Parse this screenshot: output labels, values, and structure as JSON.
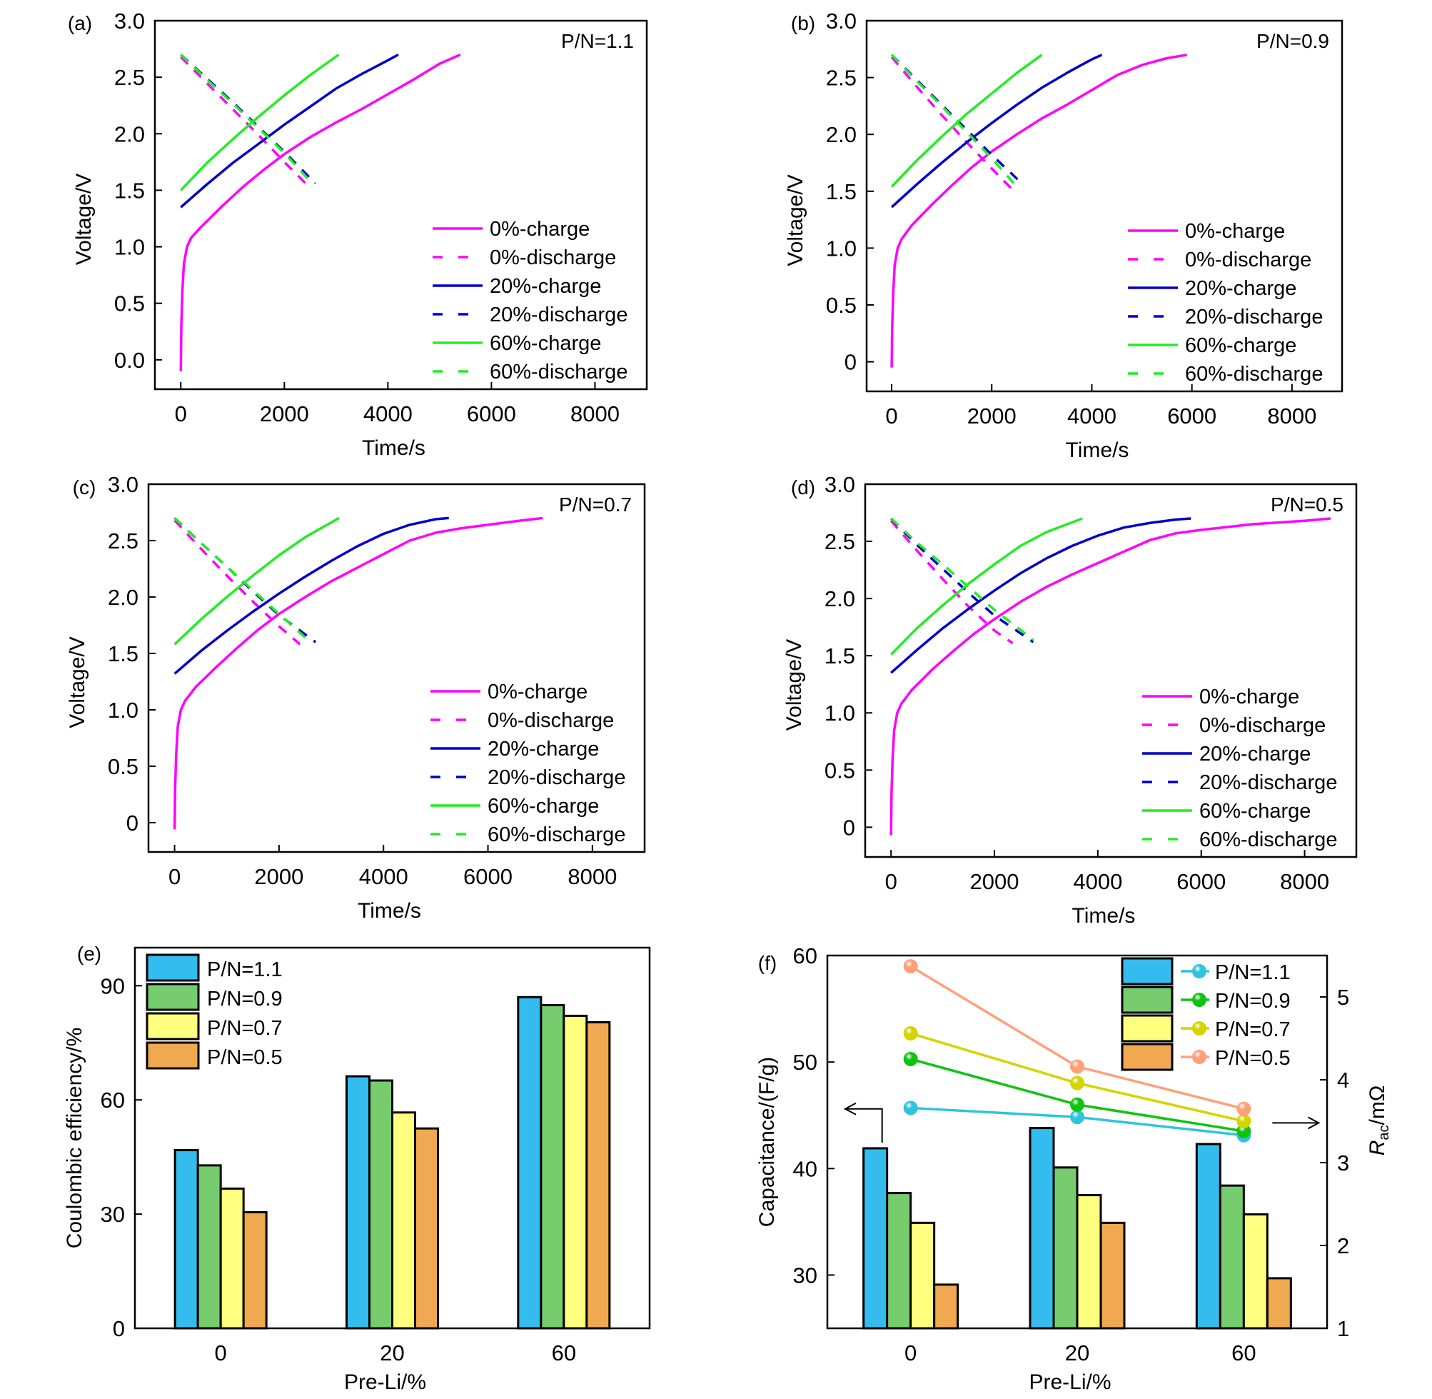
{
  "chart_data": [
    {
      "id": "a",
      "type": "line",
      "panel_label": "(a)",
      "annotation": "P/N=1.1",
      "xlabel": "Time/s",
      "ylabel": "Voltage/V",
      "xlim": [
        -500,
        9000
      ],
      "ylim": [
        -0.26,
        3.0
      ],
      "xticks": [
        0,
        2000,
        4000,
        6000,
        8000
      ],
      "yticks": [
        0,
        0.5,
        1.0,
        1.5,
        2.0,
        2.5,
        3.0
      ],
      "ytick_labels": [
        "0.0",
        "0.5",
        "1.0",
        "1.5",
        "2.0",
        "2.5",
        "3.0"
      ],
      "legend_position": "bottom-right",
      "series": [
        {
          "name": "0%-charge",
          "color": "#FF00FF",
          "dash": false,
          "x": [
            0,
            10,
            30,
            60,
            120,
            200,
            400,
            800,
            1200,
            1600,
            2000,
            2500,
            3000,
            3500,
            4000,
            4500,
            5000,
            5400
          ],
          "y": [
            -0.1,
            0.3,
            0.6,
            0.85,
            1.0,
            1.08,
            1.18,
            1.36,
            1.53,
            1.68,
            1.82,
            1.97,
            2.1,
            2.22,
            2.35,
            2.48,
            2.62,
            2.7
          ]
        },
        {
          "name": "0%-discharge",
          "color": "#FF00FF",
          "dash": true,
          "x": [
            0,
            500,
            1000,
            1500,
            2000,
            2500
          ],
          "y": [
            2.68,
            2.45,
            2.22,
            1.99,
            1.75,
            1.52
          ]
        },
        {
          "name": "20%-charge",
          "color": "#0000CC",
          "dash": false,
          "x": [
            0,
            500,
            1000,
            1500,
            2000,
            2500,
            3000,
            3500,
            4000,
            4200
          ],
          "y": [
            1.35,
            1.55,
            1.74,
            1.91,
            2.08,
            2.24,
            2.4,
            2.53,
            2.65,
            2.7
          ]
        },
        {
          "name": "20%-discharge",
          "color": "#0000CC",
          "dash": true,
          "x": [
            0,
            500,
            1000,
            1500,
            2000,
            2600
          ],
          "y": [
            2.7,
            2.49,
            2.28,
            2.06,
            1.84,
            1.56
          ]
        },
        {
          "name": "60%-charge",
          "color": "#22EE22",
          "dash": false,
          "x": [
            0,
            500,
            1000,
            1500,
            2000,
            2500,
            3050
          ],
          "y": [
            1.5,
            1.74,
            1.95,
            2.15,
            2.34,
            2.52,
            2.7
          ]
        },
        {
          "name": "60%-discharge",
          "color": "#22EE22",
          "dash": true,
          "x": [
            0,
            500,
            1000,
            1500,
            2000,
            2500
          ],
          "y": [
            2.7,
            2.48,
            2.27,
            2.05,
            1.83,
            1.58
          ]
        }
      ]
    },
    {
      "id": "b",
      "type": "line",
      "panel_label": "(b)",
      "annotation": "P/N=0.9",
      "xlabel": "Time/s",
      "ylabel": "Voltage/V",
      "xlim": [
        -500,
        9000
      ],
      "ylim": [
        -0.26,
        3.0
      ],
      "xticks": [
        0,
        2000,
        4000,
        6000,
        8000
      ],
      "yticks": [
        0,
        0.5,
        1.0,
        1.5,
        2.0,
        2.5,
        3.0
      ],
      "ytick_labels": [
        "0",
        "0.5",
        "1.0",
        "1.5",
        "2.0",
        "2.5",
        "3.0"
      ],
      "legend_position": "bottom-right",
      "series": [
        {
          "name": "0%-charge",
          "color": "#FF00FF",
          "dash": false,
          "x": [
            0,
            10,
            30,
            60,
            120,
            200,
            400,
            800,
            1200,
            1600,
            2000,
            2500,
            3000,
            3500,
            4000,
            4500,
            5000,
            5500,
            5900
          ],
          "y": [
            -0.05,
            0.3,
            0.6,
            0.85,
            1.0,
            1.08,
            1.2,
            1.38,
            1.55,
            1.71,
            1.85,
            2.0,
            2.14,
            2.26,
            2.39,
            2.52,
            2.61,
            2.67,
            2.7
          ]
        },
        {
          "name": "0%-discharge",
          "color": "#FF00FF",
          "dash": true,
          "x": [
            0,
            500,
            1000,
            1500,
            2000,
            2400
          ],
          "y": [
            2.68,
            2.42,
            2.17,
            1.93,
            1.7,
            1.52
          ]
        },
        {
          "name": "20%-charge",
          "color": "#0000CC",
          "dash": false,
          "x": [
            0,
            500,
            1000,
            1500,
            2000,
            2500,
            3000,
            3500,
            4000,
            4200
          ],
          "y": [
            1.36,
            1.56,
            1.75,
            1.93,
            2.1,
            2.26,
            2.41,
            2.54,
            2.66,
            2.7
          ]
        },
        {
          "name": "20%-discharge",
          "color": "#0000CC",
          "dash": true,
          "x": [
            0,
            500,
            1000,
            1500,
            2000,
            2600
          ],
          "y": [
            2.7,
            2.48,
            2.26,
            2.04,
            1.82,
            1.57
          ]
        },
        {
          "name": "60%-charge",
          "color": "#22EE22",
          "dash": false,
          "x": [
            0,
            500,
            1000,
            1500,
            2000,
            2500,
            3000
          ],
          "y": [
            1.54,
            1.77,
            1.98,
            2.18,
            2.36,
            2.54,
            2.7
          ]
        },
        {
          "name": "60%-discharge",
          "color": "#22EE22",
          "dash": true,
          "x": [
            0,
            500,
            1000,
            1500,
            2000,
            2500
          ],
          "y": [
            2.7,
            2.47,
            2.25,
            2.02,
            1.79,
            1.54
          ]
        }
      ]
    },
    {
      "id": "c",
      "type": "line",
      "panel_label": "(c)",
      "annotation": "P/N=0.7",
      "xlabel": "Time/s",
      "ylabel": "Voltage/V",
      "xlim": [
        -500,
        9000
      ],
      "ylim": [
        -0.26,
        3.0
      ],
      "xticks": [
        0,
        2000,
        4000,
        6000,
        8000
      ],
      "yticks": [
        0,
        0.5,
        1.0,
        1.5,
        2.0,
        2.5,
        3.0
      ],
      "ytick_labels": [
        "0",
        "0.5",
        "1.0",
        "1.5",
        "2.0",
        "2.5",
        "3.0"
      ],
      "legend_position": "bottom-right",
      "series": [
        {
          "name": "0%-charge",
          "color": "#FF00FF",
          "dash": false,
          "x": [
            0,
            10,
            30,
            60,
            120,
            200,
            400,
            800,
            1200,
            1600,
            2000,
            2500,
            3000,
            3500,
            4000,
            4500,
            5000,
            5500,
            6000,
            6500,
            7050
          ],
          "y": [
            -0.06,
            0.3,
            0.6,
            0.85,
            1.0,
            1.08,
            1.2,
            1.38,
            1.55,
            1.71,
            1.85,
            2.0,
            2.14,
            2.26,
            2.38,
            2.5,
            2.57,
            2.61,
            2.64,
            2.67,
            2.7
          ]
        },
        {
          "name": "0%-discharge",
          "color": "#FF00FF",
          "dash": true,
          "x": [
            0,
            500,
            1000,
            1500,
            2000,
            2400
          ],
          "y": [
            2.68,
            2.43,
            2.19,
            1.96,
            1.74,
            1.58
          ]
        },
        {
          "name": "20%-charge",
          "color": "#0000CC",
          "dash": false,
          "x": [
            0,
            500,
            1000,
            1500,
            2000,
            2500,
            3000,
            3500,
            4000,
            4500,
            5000,
            5250
          ],
          "y": [
            1.32,
            1.52,
            1.7,
            1.87,
            2.03,
            2.18,
            2.32,
            2.45,
            2.56,
            2.64,
            2.69,
            2.7
          ]
        },
        {
          "name": "20%-discharge",
          "color": "#0000CC",
          "dash": true,
          "x": [
            0,
            500,
            1000,
            1500,
            2000,
            2700
          ],
          "y": [
            2.7,
            2.48,
            2.27,
            2.05,
            1.84,
            1.6
          ]
        },
        {
          "name": "60%-charge",
          "color": "#22EE22",
          "dash": false,
          "x": [
            0,
            500,
            1000,
            1500,
            2000,
            2500,
            3150
          ],
          "y": [
            1.58,
            1.8,
            2.0,
            2.19,
            2.37,
            2.53,
            2.7
          ]
        },
        {
          "name": "60%-discharge",
          "color": "#22EE22",
          "dash": true,
          "x": [
            0,
            500,
            1000,
            1500,
            2000,
            2600
          ],
          "y": [
            2.7,
            2.48,
            2.27,
            2.06,
            1.85,
            1.6
          ]
        }
      ]
    },
    {
      "id": "d",
      "type": "line",
      "panel_label": "(d)",
      "annotation": "P/N=0.5",
      "xlabel": "Time/s",
      "ylabel": "Voltage/V",
      "xlim": [
        -500,
        9000
      ],
      "ylim": [
        -0.26,
        3.0
      ],
      "xticks": [
        0,
        2000,
        4000,
        6000,
        8000
      ],
      "yticks": [
        0,
        0.5,
        1.0,
        1.5,
        2.0,
        2.5,
        3.0
      ],
      "ytick_labels": [
        "0",
        "0.5",
        "1.0",
        "1.5",
        "2.0",
        "2.5",
        "3.0"
      ],
      "legend_position": "bottom-right",
      "series": [
        {
          "name": "0%-charge",
          "color": "#FF00FF",
          "dash": false,
          "x": [
            0,
            10,
            30,
            60,
            120,
            200,
            400,
            800,
            1200,
            1600,
            2000,
            2500,
            3000,
            3500,
            4000,
            4500,
            5000,
            5500,
            6000,
            7000,
            8000,
            8500
          ],
          "y": [
            -0.07,
            0.3,
            0.6,
            0.85,
            1.0,
            1.08,
            1.2,
            1.38,
            1.54,
            1.69,
            1.82,
            1.97,
            2.1,
            2.21,
            2.31,
            2.41,
            2.51,
            2.57,
            2.6,
            2.65,
            2.68,
            2.7
          ]
        },
        {
          "name": "0%-discharge",
          "color": "#FF00FF",
          "dash": true,
          "x": [
            0,
            500,
            1000,
            1500,
            2000,
            2350
          ],
          "y": [
            2.68,
            2.42,
            2.17,
            1.93,
            1.72,
            1.61
          ]
        },
        {
          "name": "20%-charge",
          "color": "#0000CC",
          "dash": false,
          "x": [
            0,
            500,
            1000,
            1500,
            2000,
            2500,
            3000,
            3500,
            4000,
            4500,
            5000,
            5500,
            5800
          ],
          "y": [
            1.35,
            1.55,
            1.74,
            1.91,
            2.07,
            2.22,
            2.35,
            2.46,
            2.55,
            2.62,
            2.66,
            2.69,
            2.7
          ]
        },
        {
          "name": "20%-discharge",
          "color": "#0000CC",
          "dash": true,
          "x": [
            0,
            500,
            1000,
            1500,
            2000,
            2750
          ],
          "y": [
            2.7,
            2.47,
            2.26,
            2.05,
            1.85,
            1.62
          ]
        },
        {
          "name": "60%-charge",
          "color": "#22EE22",
          "dash": false,
          "x": [
            0,
            500,
            1000,
            1500,
            2000,
            2500,
            3000,
            3700
          ],
          "y": [
            1.51,
            1.74,
            1.94,
            2.13,
            2.3,
            2.46,
            2.58,
            2.7
          ]
        },
        {
          "name": "60%-discharge",
          "color": "#22EE22",
          "dash": true,
          "x": [
            0,
            500,
            1000,
            1500,
            2000,
            2750
          ],
          "y": [
            2.7,
            2.49,
            2.3,
            2.1,
            1.9,
            1.64
          ]
        }
      ]
    },
    {
      "id": "e",
      "type": "bar",
      "panel_label": "(e)",
      "title": "",
      "xlabel": "Pre-Li/%",
      "ylabel": "Coulombic efficiency/%",
      "categories": [
        "0",
        "20",
        "60"
      ],
      "ylim": [
        0,
        100
      ],
      "yticks": [
        0,
        30,
        60,
        90
      ],
      "legend_position": "top-left",
      "series": [
        {
          "name": "P/N=1.1",
          "color": "#35BCEF",
          "values": [
            46.8,
            66.2,
            87.0
          ]
        },
        {
          "name": "P/N=0.9",
          "color": "#77CC6E",
          "values": [
            42.8,
            65.1,
            84.9
          ]
        },
        {
          "name": "P/N=0.7",
          "color": "#FFFF7F",
          "values": [
            36.7,
            56.7,
            82.1
          ]
        },
        {
          "name": "P/N=0.5",
          "color": "#F0A851",
          "values": [
            30.5,
            52.5,
            80.4
          ]
        }
      ]
    },
    {
      "id": "f",
      "type": "bar",
      "panel_label": "(f)",
      "title": "",
      "xlabel": "Pre-Li/%",
      "ylabel": "Capacitance/(F/g)",
      "y2label_main": "R",
      "y2label_sub": "ac",
      "y2label_unit": "/mΩ",
      "categories": [
        "0",
        "20",
        "60"
      ],
      "ylim": [
        25,
        60
      ],
      "yticks": [
        30,
        40,
        50,
        60
      ],
      "y2lim": [
        1,
        5.5
      ],
      "y2ticks": [
        1,
        2,
        3,
        4,
        5
      ],
      "legend_position": "top-right",
      "series": [
        {
          "name": "P/N=1.1",
          "color": "#35BCEF",
          "values": [
            41.9,
            43.8,
            42.3
          ]
        },
        {
          "name": "P/N=0.9",
          "color": "#77CC6E",
          "values": [
            37.7,
            40.1,
            38.4
          ]
        },
        {
          "name": "P/N=0.7",
          "color": "#FFFF7F",
          "values": [
            34.9,
            37.5,
            35.7
          ]
        },
        {
          "name": "P/N=0.5",
          "color": "#F0A851",
          "values": [
            29.1,
            34.9,
            29.7
          ]
        }
      ],
      "line_series": [
        {
          "name": "P/N=1.1",
          "color": "#2EC4DC",
          "axis": "right",
          "values": [
            3.66,
            3.55,
            3.33
          ]
        },
        {
          "name": "P/N=0.9",
          "color": "#11C311",
          "axis": "right",
          "values": [
            4.25,
            3.7,
            3.38
          ]
        },
        {
          "name": "P/N=0.7",
          "color": "#D4D400",
          "axis": "right",
          "values": [
            4.56,
            3.96,
            3.5
          ]
        },
        {
          "name": "P/N=0.5",
          "color": "#FFA07A",
          "axis": "right",
          "values": [
            5.37,
            4.16,
            3.65
          ]
        }
      ]
    }
  ]
}
